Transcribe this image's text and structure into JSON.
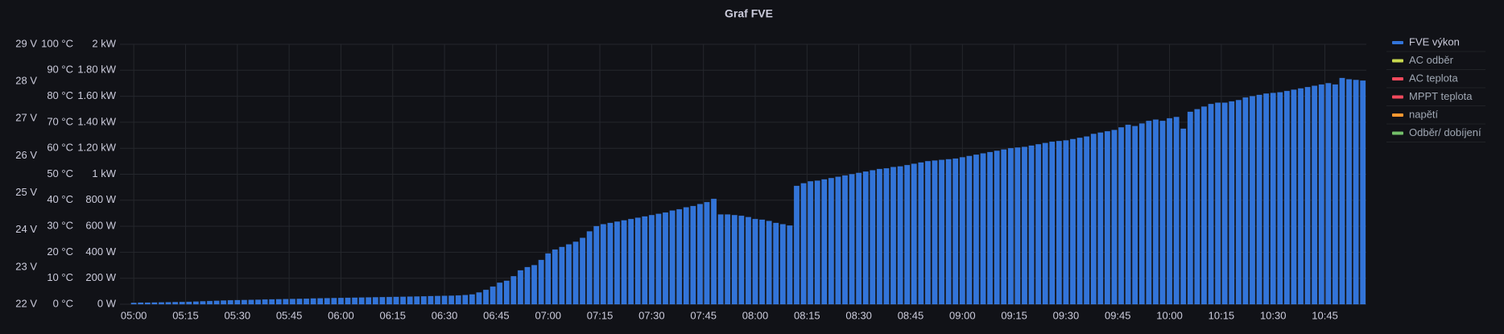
{
  "chart_data": {
    "type": "bar",
    "title": "Graf FVE",
    "x": [
      "05:00",
      "05:02",
      "05:04",
      "05:06",
      "05:08",
      "05:10",
      "05:12",
      "05:14",
      "05:16",
      "05:18",
      "05:20",
      "05:22",
      "05:24",
      "05:26",
      "05:28",
      "05:30",
      "05:32",
      "05:34",
      "05:36",
      "05:38",
      "05:40",
      "05:42",
      "05:44",
      "05:46",
      "05:48",
      "05:50",
      "05:52",
      "05:54",
      "05:56",
      "05:58",
      "06:00",
      "06:02",
      "06:04",
      "06:06",
      "06:08",
      "06:10",
      "06:12",
      "06:14",
      "06:16",
      "06:18",
      "06:20",
      "06:22",
      "06:24",
      "06:26",
      "06:28",
      "06:30",
      "06:32",
      "06:34",
      "06:36",
      "06:38",
      "06:40",
      "06:42",
      "06:44",
      "06:46",
      "06:48",
      "06:50",
      "06:52",
      "06:54",
      "06:56",
      "06:58",
      "07:00",
      "07:02",
      "07:04",
      "07:06",
      "07:08",
      "07:10",
      "07:12",
      "07:14",
      "07:16",
      "07:18",
      "07:20",
      "07:22",
      "07:24",
      "07:26",
      "07:28",
      "07:30",
      "07:32",
      "07:34",
      "07:36",
      "07:38",
      "07:40",
      "07:42",
      "07:44",
      "07:46",
      "07:48",
      "07:50",
      "07:52",
      "07:54",
      "07:56",
      "07:58",
      "08:00",
      "08:02",
      "08:04",
      "08:06",
      "08:08",
      "08:10",
      "08:12",
      "08:14",
      "08:16",
      "08:18",
      "08:20",
      "08:22",
      "08:24",
      "08:26",
      "08:28",
      "08:30",
      "08:32",
      "08:34",
      "08:36",
      "08:38",
      "08:40",
      "08:42",
      "08:44",
      "08:46",
      "08:48",
      "08:50",
      "08:52",
      "08:54",
      "08:56",
      "08:58",
      "09:00",
      "09:02",
      "09:04",
      "09:06",
      "09:08",
      "09:10",
      "09:12",
      "09:14",
      "09:16",
      "09:18",
      "09:20",
      "09:22",
      "09:24",
      "09:26",
      "09:28",
      "09:30",
      "09:32",
      "09:34",
      "09:36",
      "09:38",
      "09:40",
      "09:42",
      "09:44",
      "09:46",
      "09:48",
      "09:50",
      "09:52",
      "09:54",
      "09:56",
      "09:58",
      "10:00",
      "10:02",
      "10:04",
      "10:06",
      "10:08",
      "10:10",
      "10:12",
      "10:14",
      "10:16",
      "10:18",
      "10:20",
      "10:22",
      "10:24",
      "10:26",
      "10:28",
      "10:30",
      "10:32",
      "10:34",
      "10:36",
      "10:38",
      "10:40",
      "10:42",
      "10:44",
      "10:46",
      "10:48",
      "10:50",
      "10:52",
      "10:54",
      "10:56"
    ],
    "series": [
      {
        "name": "FVE výkon",
        "color": "#3274d9",
        "values": [
          10,
          12,
          12,
          13,
          14,
          15,
          16,
          17,
          18,
          20,
          22,
          24,
          26,
          28,
          30,
          31,
          32,
          33,
          34,
          36,
          37,
          38,
          39,
          40,
          41,
          42,
          44,
          45,
          46,
          47,
          48,
          49,
          50,
          51,
          52,
          53,
          54,
          55,
          56,
          57,
          58,
          59,
          60,
          62,
          63,
          64,
          65,
          67,
          70,
          75,
          90,
          110,
          135,
          165,
          180,
          215,
          260,
          285,
          300,
          340,
          390,
          420,
          440,
          460,
          480,
          510,
          560,
          600,
          615,
          625,
          635,
          645,
          655,
          665,
          675,
          685,
          695,
          705,
          720,
          730,
          745,
          755,
          770,
          785,
          810,
          690,
          690,
          685,
          680,
          670,
          655,
          650,
          640,
          625,
          615,
          605,
          910,
          930,
          945,
          950,
          960,
          970,
          980,
          990,
          1000,
          1010,
          1020,
          1030,
          1040,
          1045,
          1055,
          1060,
          1070,
          1080,
          1090,
          1100,
          1105,
          1110,
          1115,
          1120,
          1130,
          1140,
          1150,
          1160,
          1170,
          1180,
          1190,
          1200,
          1205,
          1210,
          1220,
          1230,
          1240,
          1250,
          1255,
          1260,
          1270,
          1280,
          1290,
          1310,
          1320,
          1330,
          1340,
          1360,
          1380,
          1370,
          1390,
          1410,
          1420,
          1410,
          1430,
          1440,
          1350,
          1480,
          1500,
          1520,
          1540,
          1550,
          1550,
          1560,
          1570,
          1590,
          1600,
          1610,
          1620,
          1625,
          1630,
          1640,
          1650,
          1660,
          1670,
          1680,
          1690,
          1700,
          1690,
          1740,
          1730,
          1725,
          1720
        ]
      },
      {
        "name": "AC odběr",
        "color": "#c8d94f"
      },
      {
        "name": "AC teplota",
        "color": "#f2495c"
      },
      {
        "name": "MPPT teplota",
        "color": "#f2495c"
      },
      {
        "name": "napětí",
        "color": "#ff9830"
      },
      {
        "name": "Odběr/ dobíjení",
        "color": "#73bf69"
      }
    ],
    "xlim": [
      "04:56",
      "10:57"
    ],
    "xticks": [
      "05:00",
      "05:15",
      "05:30",
      "05:45",
      "06:00",
      "06:15",
      "06:30",
      "06:45",
      "07:00",
      "07:15",
      "07:30",
      "07:45",
      "08:00",
      "08:15",
      "08:30",
      "08:45",
      "09:00",
      "09:15",
      "09:30",
      "09:45",
      "10:00",
      "10:15",
      "10:30",
      "10:45"
    ],
    "ylim": [
      0,
      2000
    ],
    "yticks": [
      {
        "value": 0,
        "label": "0 W"
      },
      {
        "value": 200,
        "label": "200 W"
      },
      {
        "value": 400,
        "label": "400 W"
      },
      {
        "value": 600,
        "label": "600 W"
      },
      {
        "value": 800,
        "label": "800 W"
      },
      {
        "value": 1000,
        "label": "1 kW"
      },
      {
        "value": 1200,
        "label": "1.20 kW"
      },
      {
        "value": 1400,
        "label": "1.40 kW"
      },
      {
        "value": 1600,
        "label": "1.60 kW"
      },
      {
        "value": 1800,
        "label": "1.80 kW"
      },
      {
        "value": 2000,
        "label": "2 kW"
      }
    ],
    "y2lim": [
      0,
      100
    ],
    "y2ticks": [
      {
        "value": 0,
        "label": "0 °C"
      },
      {
        "value": 10,
        "label": "10 °C"
      },
      {
        "value": 20,
        "label": "20 °C"
      },
      {
        "value": 30,
        "label": "30 °C"
      },
      {
        "value": 40,
        "label": "40 °C"
      },
      {
        "value": 50,
        "label": "50 °C"
      },
      {
        "value": 60,
        "label": "60 °C"
      },
      {
        "value": 70,
        "label": "70 °C"
      },
      {
        "value": 80,
        "label": "80 °C"
      },
      {
        "value": 90,
        "label": "90 °C"
      },
      {
        "value": 100,
        "label": "100 °C"
      }
    ],
    "y3lim": [
      22,
      29
    ],
    "y3ticks": [
      {
        "value": 22,
        "label": "22 V"
      },
      {
        "value": 23,
        "label": "23 V"
      },
      {
        "value": 24,
        "label": "24 V"
      },
      {
        "value": 25,
        "label": "25 V"
      },
      {
        "value": 26,
        "label": "26 V"
      },
      {
        "value": 27,
        "label": "27 V"
      },
      {
        "value": 28,
        "label": "28 V"
      },
      {
        "value": 29,
        "label": "29 V"
      }
    ],
    "grid": true,
    "legend": "right"
  }
}
